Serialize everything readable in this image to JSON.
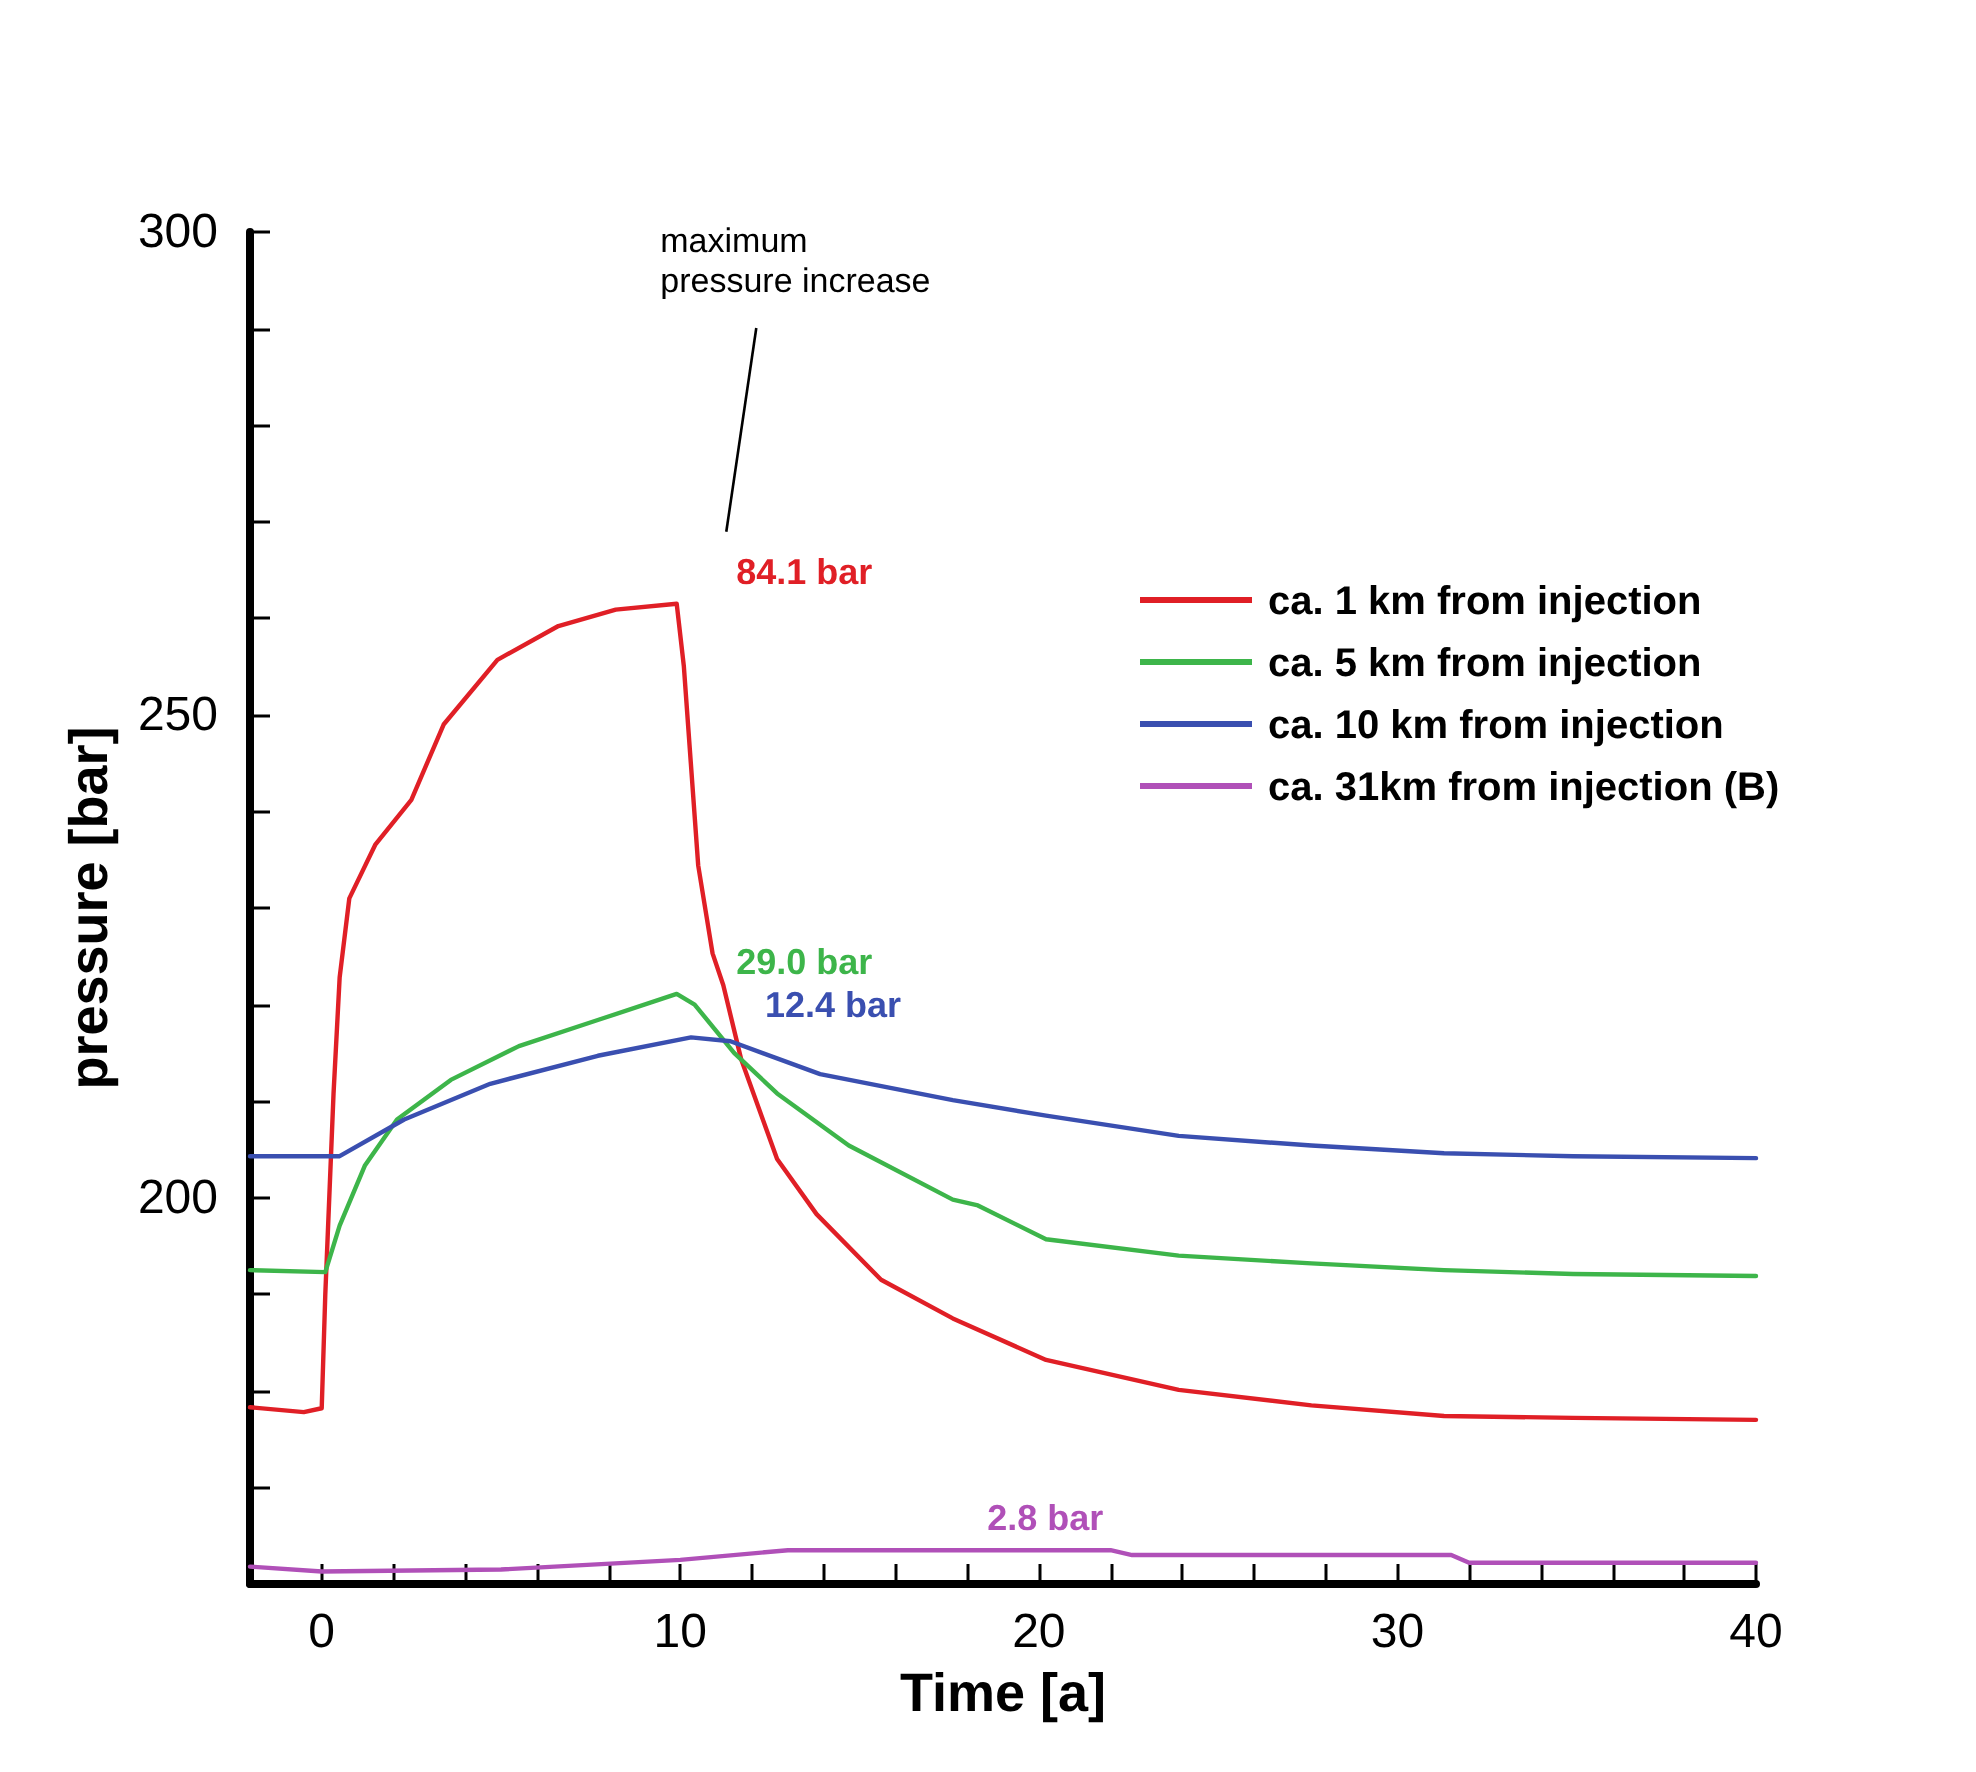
{
  "chart_data": {
    "type": "line",
    "xlabel": "Time [a]",
    "ylabel": "pressure [bar]",
    "xlim": [
      -2,
      40
    ],
    "xticks": [
      0,
      {
        "value": 2,
        "label": null
      },
      {
        "value": 4,
        "label": null
      },
      {
        "value": 6,
        "label": null
      },
      {
        "value": 8,
        "label": null
      },
      10,
      {
        "value": 12,
        "label": null
      },
      {
        "value": 14,
        "label": null
      },
      {
        "value": 16,
        "label": null
      },
      {
        "value": 18,
        "label": null
      },
      20,
      {
        "value": 22,
        "label": null
      },
      {
        "value": 24,
        "label": null
      },
      {
        "value": 26,
        "label": null
      },
      {
        "value": 28,
        "label": null
      },
      30,
      {
        "value": 32,
        "label": null
      },
      {
        "value": 34,
        "label": null
      },
      {
        "value": 36,
        "label": null
      },
      {
        "value": 38,
        "label": null
      },
      40
    ],
    "ylim": [
      160,
      300
    ],
    "yticks": [
      {
        "value": 170,
        "label": null
      },
      {
        "value": 180,
        "label": null
      },
      {
        "value": 190,
        "label": null
      },
      200,
      {
        "value": 210,
        "label": null
      },
      {
        "value": 220,
        "label": null
      },
      {
        "value": 230,
        "label": null
      },
      {
        "value": 240,
        "label": null
      },
      250,
      {
        "value": 260,
        "label": null
      },
      {
        "value": 270,
        "label": null
      },
      {
        "value": 280,
        "label": null
      },
      {
        "value": 290,
        "label": null
      },
      300
    ],
    "grid": false,
    "legend": "right",
    "marker": "none",
    "line_style": "solid",
    "series": [
      {
        "name": "ca. 1 km from injection",
        "color": "#e01f26",
        "x": [
          -2,
          -0.5,
          0,
          0.1,
          0.33,
          0.5,
          0.77,
          1.5,
          2.5,
          3.4,
          4.9,
          6.6,
          8.2,
          9.9,
          10.1,
          10.5,
          10.9,
          11.2,
          11.7,
          12.7,
          13.8,
          15.6,
          17.6,
          20.2,
          23.9,
          27.6,
          31.3,
          34.9,
          40
        ],
        "values": [
          178.3,
          177.8,
          178.2,
          190,
          210.8,
          222.8,
          231,
          236.6,
          241.2,
          249,
          255.7,
          259.2,
          260.9,
          261.5,
          255,
          234.4,
          225.3,
          222,
          214.3,
          204,
          198.3,
          191.5,
          187.5,
          183.2,
          180.1,
          178.5,
          177.4,
          177.2,
          177
        ]
      },
      {
        "name": "ca. 5 km from injection",
        "color": "#3db54a",
        "x": [
          -2,
          0.1,
          0.5,
          1.2,
          2.1,
          3.6,
          5.5,
          7.7,
          9.9,
          10.4,
          11.5,
          12.7,
          14.7,
          17.6,
          18.3,
          20.2,
          23.9,
          27.6,
          31.3,
          34.9,
          40
        ],
        "values": [
          192.5,
          192.3,
          197.1,
          203.3,
          208.1,
          212.2,
          215.7,
          218.4,
          221.1,
          220,
          215,
          210.8,
          205.4,
          199.8,
          199.2,
          195.7,
          194,
          193.2,
          192.5,
          192.1,
          191.9
        ]
      },
      {
        "name": "ca. 10 km from injection",
        "color": "#3a4fb0",
        "x": [
          -2,
          0.5,
          2.3,
          4.7,
          7.7,
          10.3,
          11.4,
          13.9,
          17.6,
          20.2,
          23.9,
          27.6,
          31.3,
          34.9,
          40
        ],
        "values": [
          204.3,
          204.3,
          208.1,
          211.8,
          214.7,
          216.6,
          216.2,
          212.8,
          210.1,
          208.5,
          206.4,
          205.4,
          204.6,
          204.3,
          204.1
        ]
      },
      {
        "name": "ca. 31km from injection (B)",
        "color": "#b050b8",
        "x": [
          -2,
          0,
          5,
          10,
          13,
          22,
          22.6,
          31.5,
          32,
          40
        ],
        "values": [
          161.8,
          161.3,
          161.5,
          162.5,
          163.5,
          163.5,
          163.0,
          163.0,
          162.2,
          162.2
        ]
      }
    ],
    "annotations": [
      "maximum pressure increase",
      {
        "text": "84.1 bar",
        "x": 10,
        "y": 261.5
      },
      {
        "text": "29.0 bar",
        "x": 10,
        "y": 221.1
      },
      {
        "text": "12.4 bar",
        "x": 10.8,
        "y": 216.6
      },
      {
        "text": "2.8 bar",
        "x": 17,
        "y": 163.5
      }
    ]
  }
}
